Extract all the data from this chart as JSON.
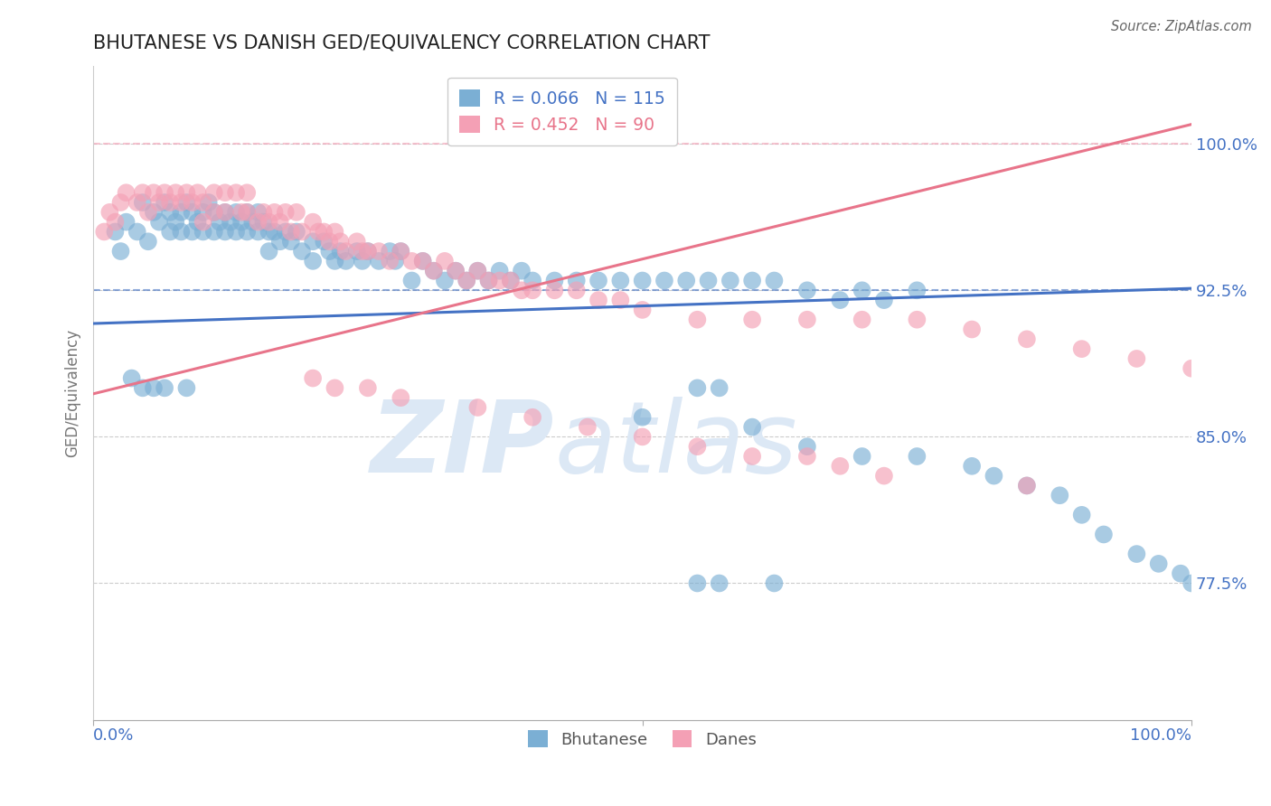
{
  "title": "BHUTANESE VS DANISH GED/EQUIVALENCY CORRELATION CHART",
  "source": "Source: ZipAtlas.com",
  "ylabel": "GED/Equivalency",
  "yticks": [
    0.775,
    0.85,
    0.925,
    1.0
  ],
  "ytick_labels": [
    "77.5%",
    "85.0%",
    "92.5%",
    "100.0%"
  ],
  "xlim": [
    0.0,
    1.0
  ],
  "ylim": [
    0.705,
    1.04
  ],
  "legend_blue_label": "R = 0.066   N = 115",
  "legend_pink_label": "R = 0.452   N = 90",
  "blue_color": "#7bafd4",
  "pink_color": "#f4a0b5",
  "blue_line_color": "#4472c4",
  "pink_line_color": "#e8748a",
  "axis_label_color": "#4472c4",
  "watermark_color": "#dce8f5",
  "blue_trend_x": [
    0.0,
    1.0
  ],
  "blue_trend_y": [
    0.908,
    0.926
  ],
  "pink_trend_x": [
    0.0,
    1.0
  ],
  "pink_trend_y": [
    0.872,
    1.01
  ],
  "hline_blue_y": 0.925,
  "hline_pink_y": 1.0,
  "blue_x": [
    0.02,
    0.025,
    0.03,
    0.04,
    0.045,
    0.05,
    0.055,
    0.06,
    0.065,
    0.07,
    0.07,
    0.075,
    0.08,
    0.08,
    0.085,
    0.09,
    0.09,
    0.095,
    0.1,
    0.1,
    0.105,
    0.11,
    0.11,
    0.115,
    0.12,
    0.12,
    0.125,
    0.13,
    0.13,
    0.135,
    0.14,
    0.14,
    0.145,
    0.15,
    0.15,
    0.155,
    0.16,
    0.16,
    0.165,
    0.17,
    0.175,
    0.18,
    0.185,
    0.19,
    0.2,
    0.2,
    0.21,
    0.215,
    0.22,
    0.225,
    0.23,
    0.24,
    0.245,
    0.25,
    0.26,
    0.27,
    0.275,
    0.28,
    0.29,
    0.3,
    0.31,
    0.32,
    0.33,
    0.34,
    0.35,
    0.36,
    0.37,
    0.38,
    0.39,
    0.4,
    0.42,
    0.44,
    0.46,
    0.48,
    0.5,
    0.52,
    0.54,
    0.56,
    0.58,
    0.6,
    0.62,
    0.65,
    0.68,
    0.7,
    0.72,
    0.75,
    0.55,
    0.57,
    0.035,
    0.045,
    0.055,
    0.065,
    0.085,
    0.5,
    0.6,
    0.65,
    0.7,
    0.75,
    0.8,
    0.82,
    0.85,
    0.88,
    0.9,
    0.92,
    0.95,
    0.97,
    0.99,
    1.0,
    0.55,
    0.57,
    0.62
  ],
  "blue_y": [
    0.955,
    0.945,
    0.96,
    0.955,
    0.97,
    0.95,
    0.965,
    0.96,
    0.97,
    0.965,
    0.955,
    0.96,
    0.965,
    0.955,
    0.97,
    0.965,
    0.955,
    0.96,
    0.965,
    0.955,
    0.97,
    0.965,
    0.955,
    0.96,
    0.965,
    0.955,
    0.96,
    0.965,
    0.955,
    0.96,
    0.965,
    0.955,
    0.96,
    0.965,
    0.955,
    0.96,
    0.955,
    0.945,
    0.955,
    0.95,
    0.955,
    0.95,
    0.955,
    0.945,
    0.95,
    0.94,
    0.95,
    0.945,
    0.94,
    0.945,
    0.94,
    0.945,
    0.94,
    0.945,
    0.94,
    0.945,
    0.94,
    0.945,
    0.93,
    0.94,
    0.935,
    0.93,
    0.935,
    0.93,
    0.935,
    0.93,
    0.935,
    0.93,
    0.935,
    0.93,
    0.93,
    0.93,
    0.93,
    0.93,
    0.93,
    0.93,
    0.93,
    0.93,
    0.93,
    0.93,
    0.93,
    0.925,
    0.92,
    0.925,
    0.92,
    0.925,
    0.875,
    0.875,
    0.88,
    0.875,
    0.875,
    0.875,
    0.875,
    0.86,
    0.855,
    0.845,
    0.84,
    0.84,
    0.835,
    0.83,
    0.825,
    0.82,
    0.81,
    0.8,
    0.79,
    0.785,
    0.78,
    0.775,
    0.775,
    0.775,
    0.775
  ],
  "pink_x": [
    0.01,
    0.015,
    0.02,
    0.025,
    0.03,
    0.04,
    0.045,
    0.05,
    0.055,
    0.06,
    0.065,
    0.07,
    0.075,
    0.08,
    0.085,
    0.09,
    0.095,
    0.1,
    0.1,
    0.11,
    0.11,
    0.12,
    0.12,
    0.13,
    0.135,
    0.14,
    0.14,
    0.15,
    0.155,
    0.16,
    0.165,
    0.17,
    0.175,
    0.18,
    0.185,
    0.19,
    0.2,
    0.205,
    0.21,
    0.215,
    0.22,
    0.225,
    0.23,
    0.24,
    0.245,
    0.25,
    0.26,
    0.27,
    0.28,
    0.29,
    0.3,
    0.31,
    0.32,
    0.33,
    0.34,
    0.35,
    0.36,
    0.37,
    0.38,
    0.39,
    0.4,
    0.42,
    0.44,
    0.46,
    0.48,
    0.5,
    0.55,
    0.6,
    0.65,
    0.7,
    0.75,
    0.8,
    0.85,
    0.9,
    0.95,
    1.0,
    0.2,
    0.22,
    0.25,
    0.28,
    0.35,
    0.4,
    0.45,
    0.5,
    0.55,
    0.6,
    0.65,
    0.68,
    0.72,
    0.85
  ],
  "pink_y": [
    0.955,
    0.965,
    0.96,
    0.97,
    0.975,
    0.97,
    0.975,
    0.965,
    0.975,
    0.97,
    0.975,
    0.97,
    0.975,
    0.97,
    0.975,
    0.97,
    0.975,
    0.97,
    0.96,
    0.975,
    0.965,
    0.975,
    0.965,
    0.975,
    0.965,
    0.975,
    0.965,
    0.96,
    0.965,
    0.96,
    0.965,
    0.96,
    0.965,
    0.955,
    0.965,
    0.955,
    0.96,
    0.955,
    0.955,
    0.95,
    0.955,
    0.95,
    0.945,
    0.95,
    0.945,
    0.945,
    0.945,
    0.94,
    0.945,
    0.94,
    0.94,
    0.935,
    0.94,
    0.935,
    0.93,
    0.935,
    0.93,
    0.93,
    0.93,
    0.925,
    0.925,
    0.925,
    0.925,
    0.92,
    0.92,
    0.915,
    0.91,
    0.91,
    0.91,
    0.91,
    0.91,
    0.905,
    0.9,
    0.895,
    0.89,
    0.885,
    0.88,
    0.875,
    0.875,
    0.87,
    0.865,
    0.86,
    0.855,
    0.85,
    0.845,
    0.84,
    0.84,
    0.835,
    0.83,
    0.825
  ]
}
